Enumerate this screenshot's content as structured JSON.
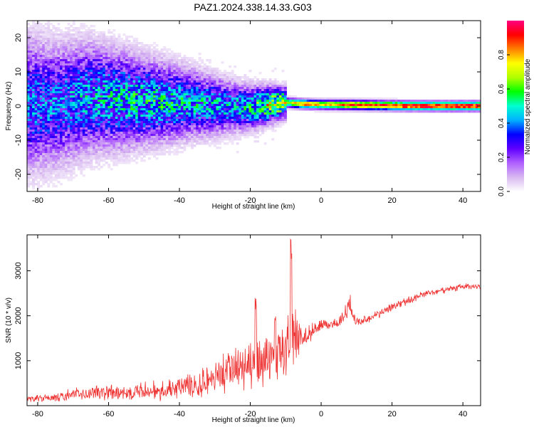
{
  "title": "PAZ1.2024.338.14.33.G03",
  "chart_data": [
    {
      "type": "heatmap",
      "xlabel": "Height of straight line (km)",
      "ylabel": "Frequency (Hz)",
      "xlim": [
        -83,
        45
      ],
      "ylim": [
        -25,
        25
      ],
      "xticks": [
        -80,
        -60,
        -40,
        -20,
        0,
        20,
        40
      ],
      "yticks": [
        -20,
        -10,
        0,
        10,
        20
      ],
      "colorbar": {
        "label": "Normalized spectral amplitude",
        "range": [
          0.0,
          1.0
        ],
        "ticks": [
          0.0,
          0.2,
          0.4,
          0.6,
          0.8
        ],
        "colormap": [
          "#ffffff",
          "#d8b8f0",
          "#b060ff",
          "#6000ff",
          "#0000ff",
          "#00b0ff",
          "#00ffd0",
          "#00ff00",
          "#b0ff00",
          "#ffff00",
          "#ff8000",
          "#ff0000",
          "#ff0080"
        ]
      },
      "ridge": [
        {
          "x": -75,
          "f": 0.5,
          "a": 0.35
        },
        {
          "x": -65,
          "f": 2.5,
          "a": 0.4
        },
        {
          "x": -55,
          "f": 1.8,
          "a": 0.45
        },
        {
          "x": -45,
          "f": 1.2,
          "a": 0.45
        },
        {
          "x": -35,
          "f": 0.6,
          "a": 0.42
        },
        {
          "x": -25,
          "f": -0.3,
          "a": 0.4
        },
        {
          "x": -20,
          "f": -0.4,
          "a": 0.45
        },
        {
          "x": -15,
          "f": 0.2,
          "a": 0.65
        },
        {
          "x": -10,
          "f": 1.0,
          "a": 0.65
        },
        {
          "x": -5,
          "f": 0.6,
          "a": 0.85
        },
        {
          "x": 0,
          "f": 0.4,
          "a": 0.75
        },
        {
          "x": 10,
          "f": 0.3,
          "a": 0.9
        },
        {
          "x": 20,
          "f": 0.1,
          "a": 0.92
        },
        {
          "x": 30,
          "f": 0.0,
          "a": 0.96
        },
        {
          "x": 45,
          "f": 0.0,
          "a": 0.96
        }
      ]
    },
    {
      "type": "line",
      "xlabel": "Height of straight line (km)",
      "ylabel": "SNR (10 * v/v)",
      "xlim": [
        -83,
        45
      ],
      "ylim": [
        0,
        3800
      ],
      "xticks": [
        -80,
        -60,
        -40,
        -20,
        0,
        20,
        40
      ],
      "yticks": [
        1000,
        2000,
        3000
      ],
      "color": "#ee3333",
      "envelope": {
        "x": [
          -83,
          -75,
          -70,
          -60,
          -50,
          -40,
          -30,
          -25,
          -20,
          -15,
          -10,
          -9,
          -8,
          -5,
          0,
          5,
          8,
          10,
          15,
          20,
          30,
          40,
          45
        ],
        "mean": [
          150,
          180,
          250,
          300,
          330,
          400,
          600,
          800,
          900,
          1000,
          1300,
          1600,
          1600,
          1500,
          1800,
          1850,
          2200,
          1850,
          2000,
          2200,
          2500,
          2650,
          2650
        ],
        "noise": [
          90,
          100,
          160,
          230,
          250,
          300,
          450,
          600,
          700,
          650,
          650,
          700,
          800,
          300,
          150,
          150,
          200,
          150,
          120,
          100,
          90,
          80,
          80
        ]
      },
      "spikes": [
        {
          "x": -8.5,
          "y": 3800
        },
        {
          "x": -18.5,
          "y": 2450
        },
        {
          "x": -13,
          "y": 2100
        },
        {
          "x": 8,
          "y": 2500
        }
      ]
    }
  ]
}
